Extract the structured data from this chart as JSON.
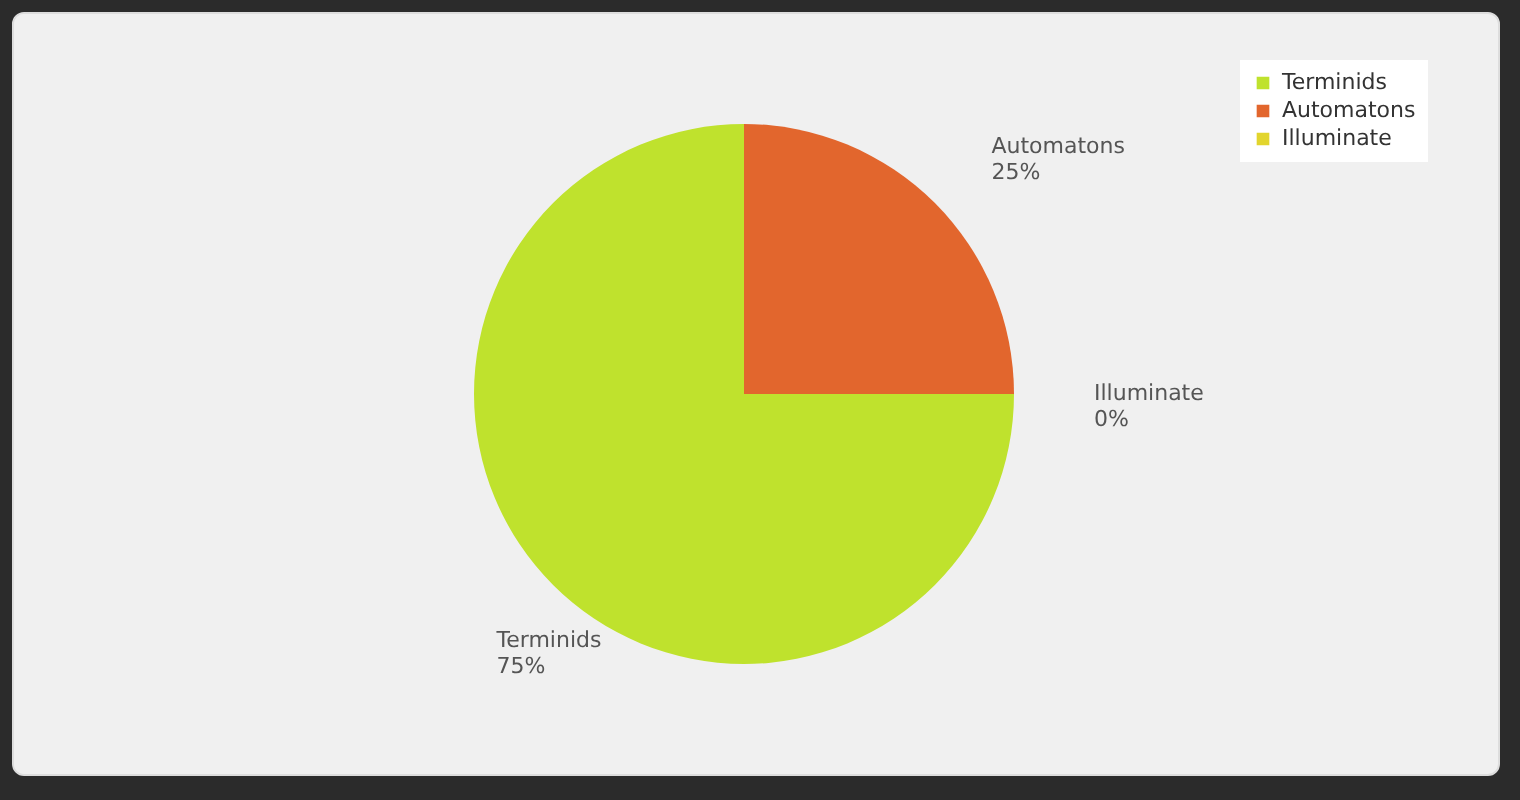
{
  "chart_data": {
    "type": "pie",
    "categories": [
      "Terminids",
      "Automatons",
      "Illuminate"
    ],
    "values": [
      75,
      25,
      0
    ],
    "colors": [
      "#bfe22d",
      "#e2662d",
      "#e2d52d"
    ],
    "value_labels": [
      "75%",
      "25%",
      "0%"
    ],
    "legend": "top right"
  }
}
